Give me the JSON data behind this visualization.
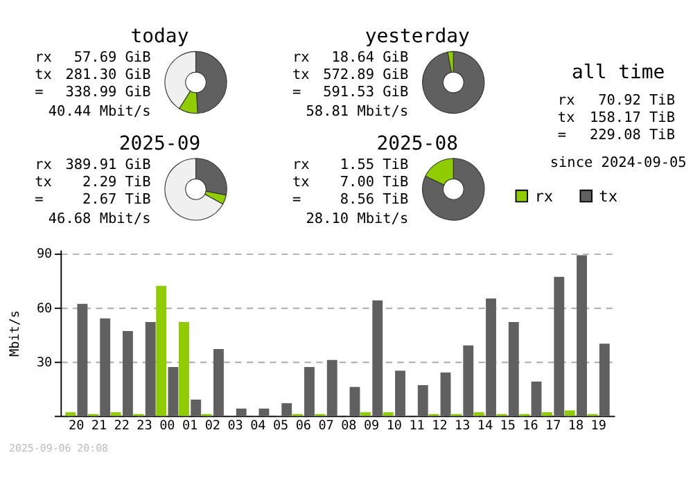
{
  "chart_data": [
    {
      "type": "donut",
      "title": "today",
      "values": [
        49,
        10,
        41
      ],
      "colors": [
        "#606060",
        "#8fcc00",
        "#f0f0f0"
      ],
      "annotations": [
        "rx 57.69 GiB",
        "tx 281.30 GiB",
        "= 338.99 GiB",
        "40.44 Mbit/s"
      ]
    },
    {
      "type": "donut",
      "title": "yesterday",
      "values": [
        97,
        3
      ],
      "colors": [
        "#606060",
        "#8fcc00"
      ],
      "annotations": [
        "rx 18.64 GiB",
        "tx 572.89 GiB",
        "= 591.53 GiB",
        "58.81 Mbit/s"
      ]
    },
    {
      "type": "donut",
      "title": "2025-09",
      "values": [
        28,
        5,
        67
      ],
      "colors": [
        "#606060",
        "#8fcc00",
        "#f0f0f0"
      ],
      "annotations": [
        "rx 389.91 GiB",
        "tx 2.29 TiB",
        "= 2.67 TiB",
        "46.68 Mbit/s"
      ]
    },
    {
      "type": "donut",
      "title": "2025-08",
      "values": [
        82,
        18
      ],
      "colors": [
        "#606060",
        "#8fcc00"
      ],
      "annotations": [
        "rx 1.55 TiB",
        "tx 7.00 TiB",
        "= 8.56 TiB",
        "28.10 Mbit/s"
      ]
    },
    {
      "type": "other",
      "title": "all time",
      "annotations": [
        "rx 70.92 TiB",
        "tx 158.17 TiB",
        "= 229.08 TiB",
        "since 2024-09-05"
      ]
    },
    {
      "type": "bar",
      "ylabel": "Mbit/s",
      "categories": [
        "20",
        "21",
        "22",
        "23",
        "00",
        "01",
        "02",
        "03",
        "04",
        "05",
        "06",
        "07",
        "08",
        "09",
        "10",
        "11",
        "12",
        "13",
        "14",
        "15",
        "16",
        "17",
        "18",
        "19"
      ],
      "series": [
        {
          "name": "rx",
          "color": "#8fcc00",
          "values": [
            2,
            1,
            2,
            1,
            72,
            52,
            1,
            0,
            0,
            0,
            1,
            1,
            0,
            2,
            2,
            0,
            1,
            1,
            2,
            1,
            1,
            2,
            3,
            1
          ]
        },
        {
          "name": "tx",
          "color": "#606060",
          "values": [
            62,
            54,
            47,
            52,
            27,
            9,
            37,
            4,
            4,
            7,
            27,
            31,
            16,
            64,
            25,
            17,
            24,
            39,
            65,
            52,
            19,
            77,
            89,
            40
          ]
        }
      ],
      "ylim": [
        0,
        92
      ],
      "yticks": [
        {
          "value": 0,
          "label": null
        },
        30,
        60,
        90
      ],
      "grid": "y",
      "legend": "top right",
      "annotations": [
        "2025-09-06 20:08"
      ]
    }
  ]
}
